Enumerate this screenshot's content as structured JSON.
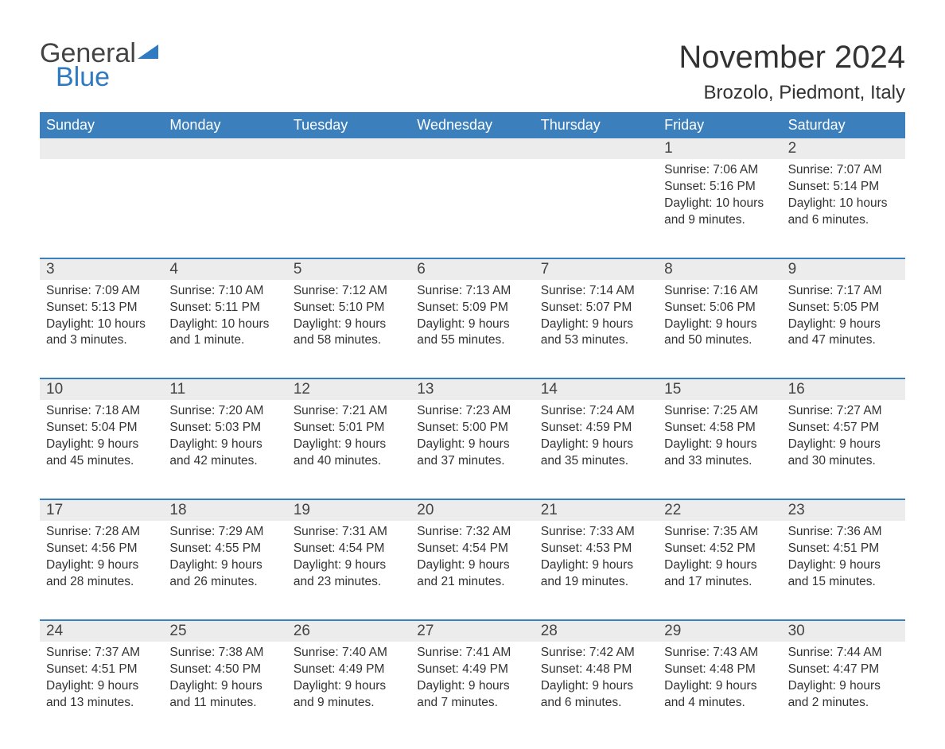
{
  "logo": {
    "word1": "General",
    "word2": "Blue",
    "word1_color": "#444444",
    "word2_color": "#2f7ac0"
  },
  "title": "November 2024",
  "location": "Brozolo, Piedmont, Italy",
  "colors": {
    "header_bg": "#3b7fbd",
    "header_text": "#ffffff",
    "daynum_bg": "#ececec",
    "week_border": "#3b7fbd",
    "body_text": "#333333",
    "page_bg": "#ffffff"
  },
  "day_names": [
    "Sunday",
    "Monday",
    "Tuesday",
    "Wednesday",
    "Thursday",
    "Friday",
    "Saturday"
  ],
  "weeks": [
    {
      "cells": [
        {
          "num": "",
          "lines": []
        },
        {
          "num": "",
          "lines": []
        },
        {
          "num": "",
          "lines": []
        },
        {
          "num": "",
          "lines": []
        },
        {
          "num": "",
          "lines": []
        },
        {
          "num": "1",
          "lines": [
            "Sunrise: 7:06 AM",
            "Sunset: 5:16 PM",
            "Daylight: 10 hours",
            "and 9 minutes."
          ]
        },
        {
          "num": "2",
          "lines": [
            "Sunrise: 7:07 AM",
            "Sunset: 5:14 PM",
            "Daylight: 10 hours",
            "and 6 minutes."
          ]
        }
      ]
    },
    {
      "cells": [
        {
          "num": "3",
          "lines": [
            "Sunrise: 7:09 AM",
            "Sunset: 5:13 PM",
            "Daylight: 10 hours",
            "and 3 minutes."
          ]
        },
        {
          "num": "4",
          "lines": [
            "Sunrise: 7:10 AM",
            "Sunset: 5:11 PM",
            "Daylight: 10 hours",
            "and 1 minute."
          ]
        },
        {
          "num": "5",
          "lines": [
            "Sunrise: 7:12 AM",
            "Sunset: 5:10 PM",
            "Daylight: 9 hours",
            "and 58 minutes."
          ]
        },
        {
          "num": "6",
          "lines": [
            "Sunrise: 7:13 AM",
            "Sunset: 5:09 PM",
            "Daylight: 9 hours",
            "and 55 minutes."
          ]
        },
        {
          "num": "7",
          "lines": [
            "Sunrise: 7:14 AM",
            "Sunset: 5:07 PM",
            "Daylight: 9 hours",
            "and 53 minutes."
          ]
        },
        {
          "num": "8",
          "lines": [
            "Sunrise: 7:16 AM",
            "Sunset: 5:06 PM",
            "Daylight: 9 hours",
            "and 50 minutes."
          ]
        },
        {
          "num": "9",
          "lines": [
            "Sunrise: 7:17 AM",
            "Sunset: 5:05 PM",
            "Daylight: 9 hours",
            "and 47 minutes."
          ]
        }
      ]
    },
    {
      "cells": [
        {
          "num": "10",
          "lines": [
            "Sunrise: 7:18 AM",
            "Sunset: 5:04 PM",
            "Daylight: 9 hours",
            "and 45 minutes."
          ]
        },
        {
          "num": "11",
          "lines": [
            "Sunrise: 7:20 AM",
            "Sunset: 5:03 PM",
            "Daylight: 9 hours",
            "and 42 minutes."
          ]
        },
        {
          "num": "12",
          "lines": [
            "Sunrise: 7:21 AM",
            "Sunset: 5:01 PM",
            "Daylight: 9 hours",
            "and 40 minutes."
          ]
        },
        {
          "num": "13",
          "lines": [
            "Sunrise: 7:23 AM",
            "Sunset: 5:00 PM",
            "Daylight: 9 hours",
            "and 37 minutes."
          ]
        },
        {
          "num": "14",
          "lines": [
            "Sunrise: 7:24 AM",
            "Sunset: 4:59 PM",
            "Daylight: 9 hours",
            "and 35 minutes."
          ]
        },
        {
          "num": "15",
          "lines": [
            "Sunrise: 7:25 AM",
            "Sunset: 4:58 PM",
            "Daylight: 9 hours",
            "and 33 minutes."
          ]
        },
        {
          "num": "16",
          "lines": [
            "Sunrise: 7:27 AM",
            "Sunset: 4:57 PM",
            "Daylight: 9 hours",
            "and 30 minutes."
          ]
        }
      ]
    },
    {
      "cells": [
        {
          "num": "17",
          "lines": [
            "Sunrise: 7:28 AM",
            "Sunset: 4:56 PM",
            "Daylight: 9 hours",
            "and 28 minutes."
          ]
        },
        {
          "num": "18",
          "lines": [
            "Sunrise: 7:29 AM",
            "Sunset: 4:55 PM",
            "Daylight: 9 hours",
            "and 26 minutes."
          ]
        },
        {
          "num": "19",
          "lines": [
            "Sunrise: 7:31 AM",
            "Sunset: 4:54 PM",
            "Daylight: 9 hours",
            "and 23 minutes."
          ]
        },
        {
          "num": "20",
          "lines": [
            "Sunrise: 7:32 AM",
            "Sunset: 4:54 PM",
            "Daylight: 9 hours",
            "and 21 minutes."
          ]
        },
        {
          "num": "21",
          "lines": [
            "Sunrise: 7:33 AM",
            "Sunset: 4:53 PM",
            "Daylight: 9 hours",
            "and 19 minutes."
          ]
        },
        {
          "num": "22",
          "lines": [
            "Sunrise: 7:35 AM",
            "Sunset: 4:52 PM",
            "Daylight: 9 hours",
            "and 17 minutes."
          ]
        },
        {
          "num": "23",
          "lines": [
            "Sunrise: 7:36 AM",
            "Sunset: 4:51 PM",
            "Daylight: 9 hours",
            "and 15 minutes."
          ]
        }
      ]
    },
    {
      "cells": [
        {
          "num": "24",
          "lines": [
            "Sunrise: 7:37 AM",
            "Sunset: 4:51 PM",
            "Daylight: 9 hours",
            "and 13 minutes."
          ]
        },
        {
          "num": "25",
          "lines": [
            "Sunrise: 7:38 AM",
            "Sunset: 4:50 PM",
            "Daylight: 9 hours",
            "and 11 minutes."
          ]
        },
        {
          "num": "26",
          "lines": [
            "Sunrise: 7:40 AM",
            "Sunset: 4:49 PM",
            "Daylight: 9 hours",
            "and 9 minutes."
          ]
        },
        {
          "num": "27",
          "lines": [
            "Sunrise: 7:41 AM",
            "Sunset: 4:49 PM",
            "Daylight: 9 hours",
            "and 7 minutes."
          ]
        },
        {
          "num": "28",
          "lines": [
            "Sunrise: 7:42 AM",
            "Sunset: 4:48 PM",
            "Daylight: 9 hours",
            "and 6 minutes."
          ]
        },
        {
          "num": "29",
          "lines": [
            "Sunrise: 7:43 AM",
            "Sunset: 4:48 PM",
            "Daylight: 9 hours",
            "and 4 minutes."
          ]
        },
        {
          "num": "30",
          "lines": [
            "Sunrise: 7:44 AM",
            "Sunset: 4:47 PM",
            "Daylight: 9 hours",
            "and 2 minutes."
          ]
        }
      ]
    }
  ]
}
